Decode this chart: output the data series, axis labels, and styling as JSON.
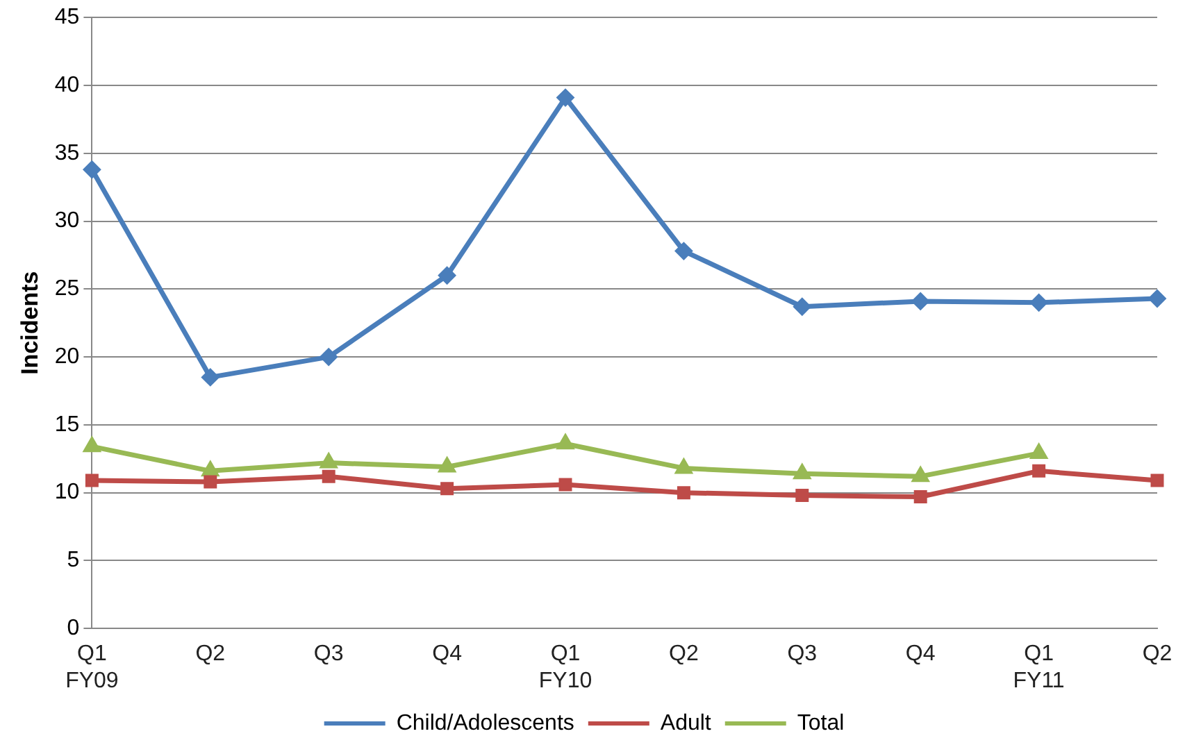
{
  "chart_data": {
    "type": "line",
    "ylabel": "Incidents",
    "categories": [
      "Q1\nFY09",
      "Q2",
      "Q3",
      "Q4",
      "Q1\nFY10",
      "Q2",
      "Q3",
      "Q4",
      "Q1\nFY11",
      "Q2"
    ],
    "series": [
      {
        "name": "Child/Adolescents",
        "color": "#4a7ebb",
        "marker": "diamond",
        "values": [
          33.8,
          18.5,
          20.0,
          26.0,
          39.1,
          27.8,
          23.7,
          24.1,
          24.0,
          24.3
        ]
      },
      {
        "name": "Adult",
        "color": "#be4b48",
        "marker": "square",
        "values": [
          10.9,
          10.8,
          11.2,
          10.3,
          10.6,
          10.0,
          9.8,
          9.7,
          11.6,
          10.9
        ]
      },
      {
        "name": "Total",
        "color": "#98b954",
        "marker": "triangle",
        "values": [
          13.4,
          11.6,
          12.2,
          11.9,
          13.6,
          11.8,
          11.4,
          11.2,
          12.9,
          null
        ]
      }
    ],
    "ylim": [
      0,
      45
    ],
    "yticks": [
      0,
      5,
      10,
      15,
      20,
      25,
      30,
      35,
      40,
      45
    ],
    "grid": "y",
    "legend": "bottom"
  }
}
